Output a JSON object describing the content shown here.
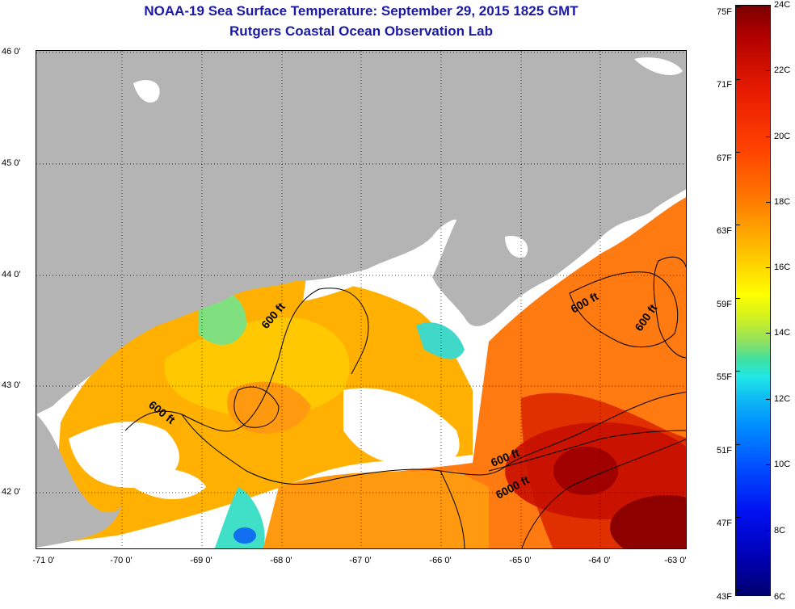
{
  "title": "NOAA-19 Sea Surface Temperature:  September 29, 2015 1825 GMT",
  "subtitle": "Rutgers Coastal Ocean Observation Lab",
  "map": {
    "latitude_labels": [
      "46 0'",
      "45 0'",
      "44 0'",
      "43 0'",
      "42 0'"
    ],
    "longitude_labels": [
      "-71 0'",
      "-70 0'",
      "-69 0'",
      "-68 0'",
      "-67 0'",
      "-66 0'",
      "-65 0'",
      "-64 0'",
      "-63 0'"
    ],
    "contour_labels": [
      "600 ft",
      "600 ft",
      "600 ft",
      "600 ft",
      "600 ft",
      "6000 ft"
    ],
    "colors": {
      "land": "#b4b4b4",
      "cloud": "#ffffff",
      "coast": "#000000"
    }
  },
  "colorbar": {
    "celsius_labels": [
      "24C",
      "22C",
      "20C",
      "18C",
      "16C",
      "14C",
      "12C",
      "10C",
      "8C",
      "6C"
    ],
    "fahrenheit_labels": [
      "75F",
      "71F",
      "67F",
      "63F",
      "59F",
      "55F",
      "51F",
      "47F",
      "43F"
    ],
    "range_c": [
      6,
      24
    ],
    "colors_top_to_bottom": [
      "#7a0000",
      "#e51a00",
      "#ff7a00",
      "#ffff00",
      "#20e8e8",
      "#0050ff",
      "#00006e"
    ]
  }
}
